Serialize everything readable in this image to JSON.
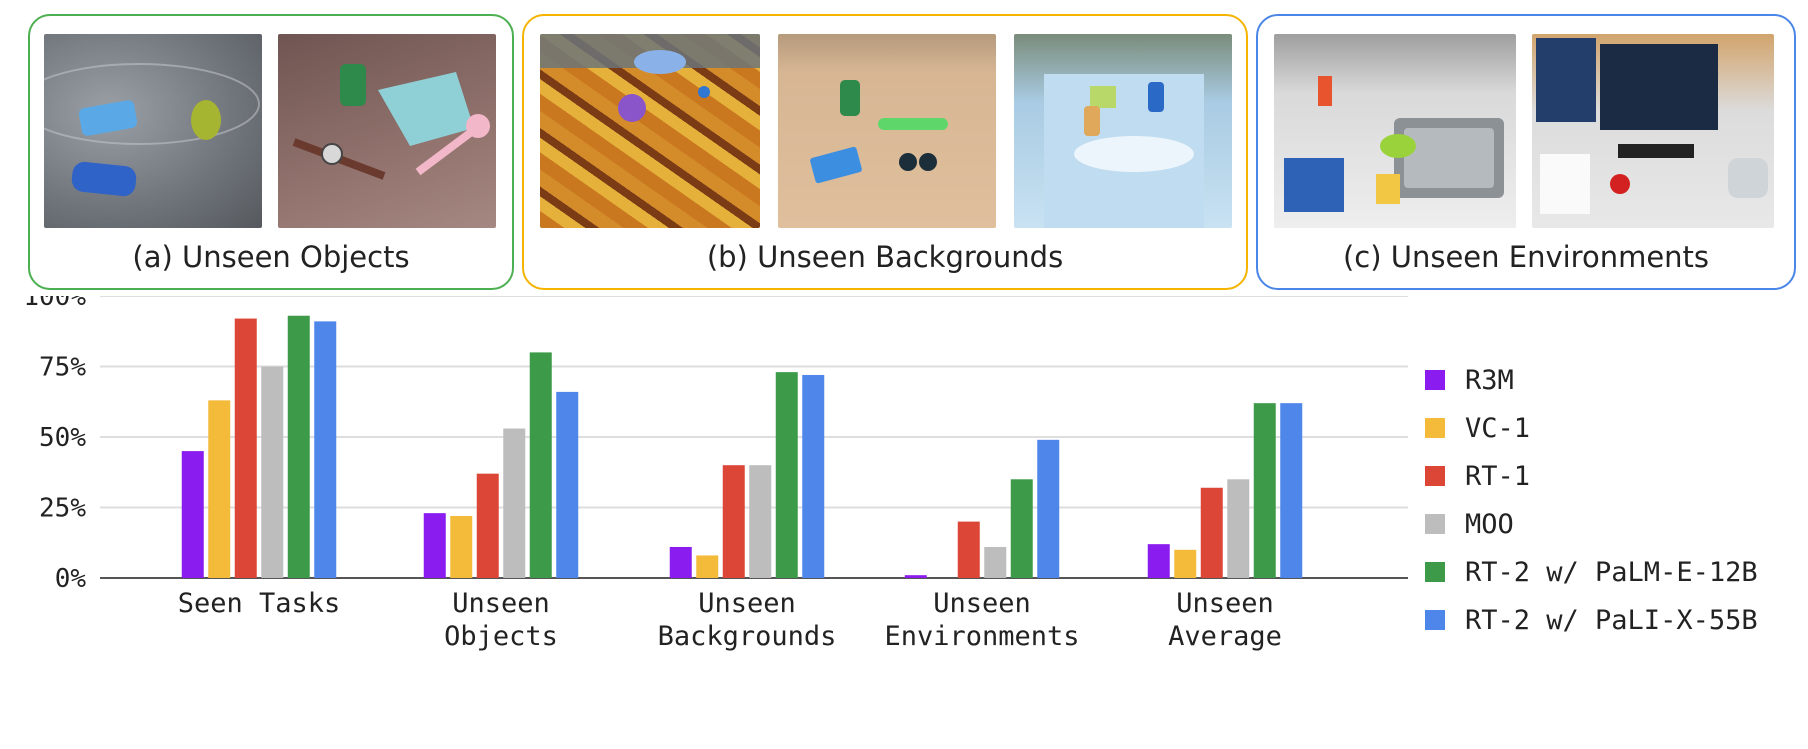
{
  "panels": [
    {
      "label": "(a) Unseen Objects",
      "border_color": "#4caf50",
      "photos": [
        "tabletop with soda cans, a pear and a crumpled carton",
        "table with a green can, blue towel, wristwatch and pink brush"
      ]
    },
    {
      "label": "(b) Unseen Backgrounds",
      "border_color": "#f4b400",
      "photos": [
        "colorful autumn-print tablecloth with toys and a plate",
        "wooden table with can, rolling pin, candy and sunglasses",
        "sky-print cloth covered box with cans and a bag"
      ]
    },
    {
      "label": "(c) Unseen Environments",
      "border_color": "#4a86e8",
      "photos": [
        "kitchen counter with sink, sponge and chip bag",
        "office desk with monitors, keyboard and a robot arm"
      ]
    }
  ],
  "chart_data": {
    "type": "bar",
    "categories": [
      [
        "Seen Tasks"
      ],
      [
        "Unseen",
        "Objects"
      ],
      [
        "Unseen",
        "Backgrounds"
      ],
      [
        "Unseen",
        "Environments"
      ],
      [
        "Unseen",
        "Average"
      ]
    ],
    "ylim": [
      0,
      100
    ],
    "yticks": [
      "0%",
      "25%",
      "50%",
      "75%",
      "100%"
    ],
    "ytick_values": [
      0,
      25,
      50,
      75,
      100
    ],
    "grid": true,
    "legend_placement": "right",
    "series": [
      {
        "name": "R3M",
        "color": "#8a1cf0",
        "values": [
          45,
          23,
          11,
          1,
          12
        ]
      },
      {
        "name": "VC-1",
        "color": "#f4bb3b",
        "values": [
          63,
          22,
          8,
          0,
          10
        ]
      },
      {
        "name": "RT-1",
        "color": "#db4637",
        "values": [
          92,
          37,
          40,
          20,
          32
        ]
      },
      {
        "name": "MOO",
        "color": "#bdbdbd",
        "values": [
          75,
          53,
          40,
          11,
          35
        ]
      },
      {
        "name": "RT-2 w/ PaLM-E-12B",
        "color": "#3c9a48",
        "values": [
          93,
          80,
          73,
          35,
          62
        ]
      },
      {
        "name": "RT-2 w/ PaLI-X-55B",
        "color": "#4e86ea",
        "values": [
          91,
          66,
          72,
          49,
          62
        ]
      }
    ]
  }
}
